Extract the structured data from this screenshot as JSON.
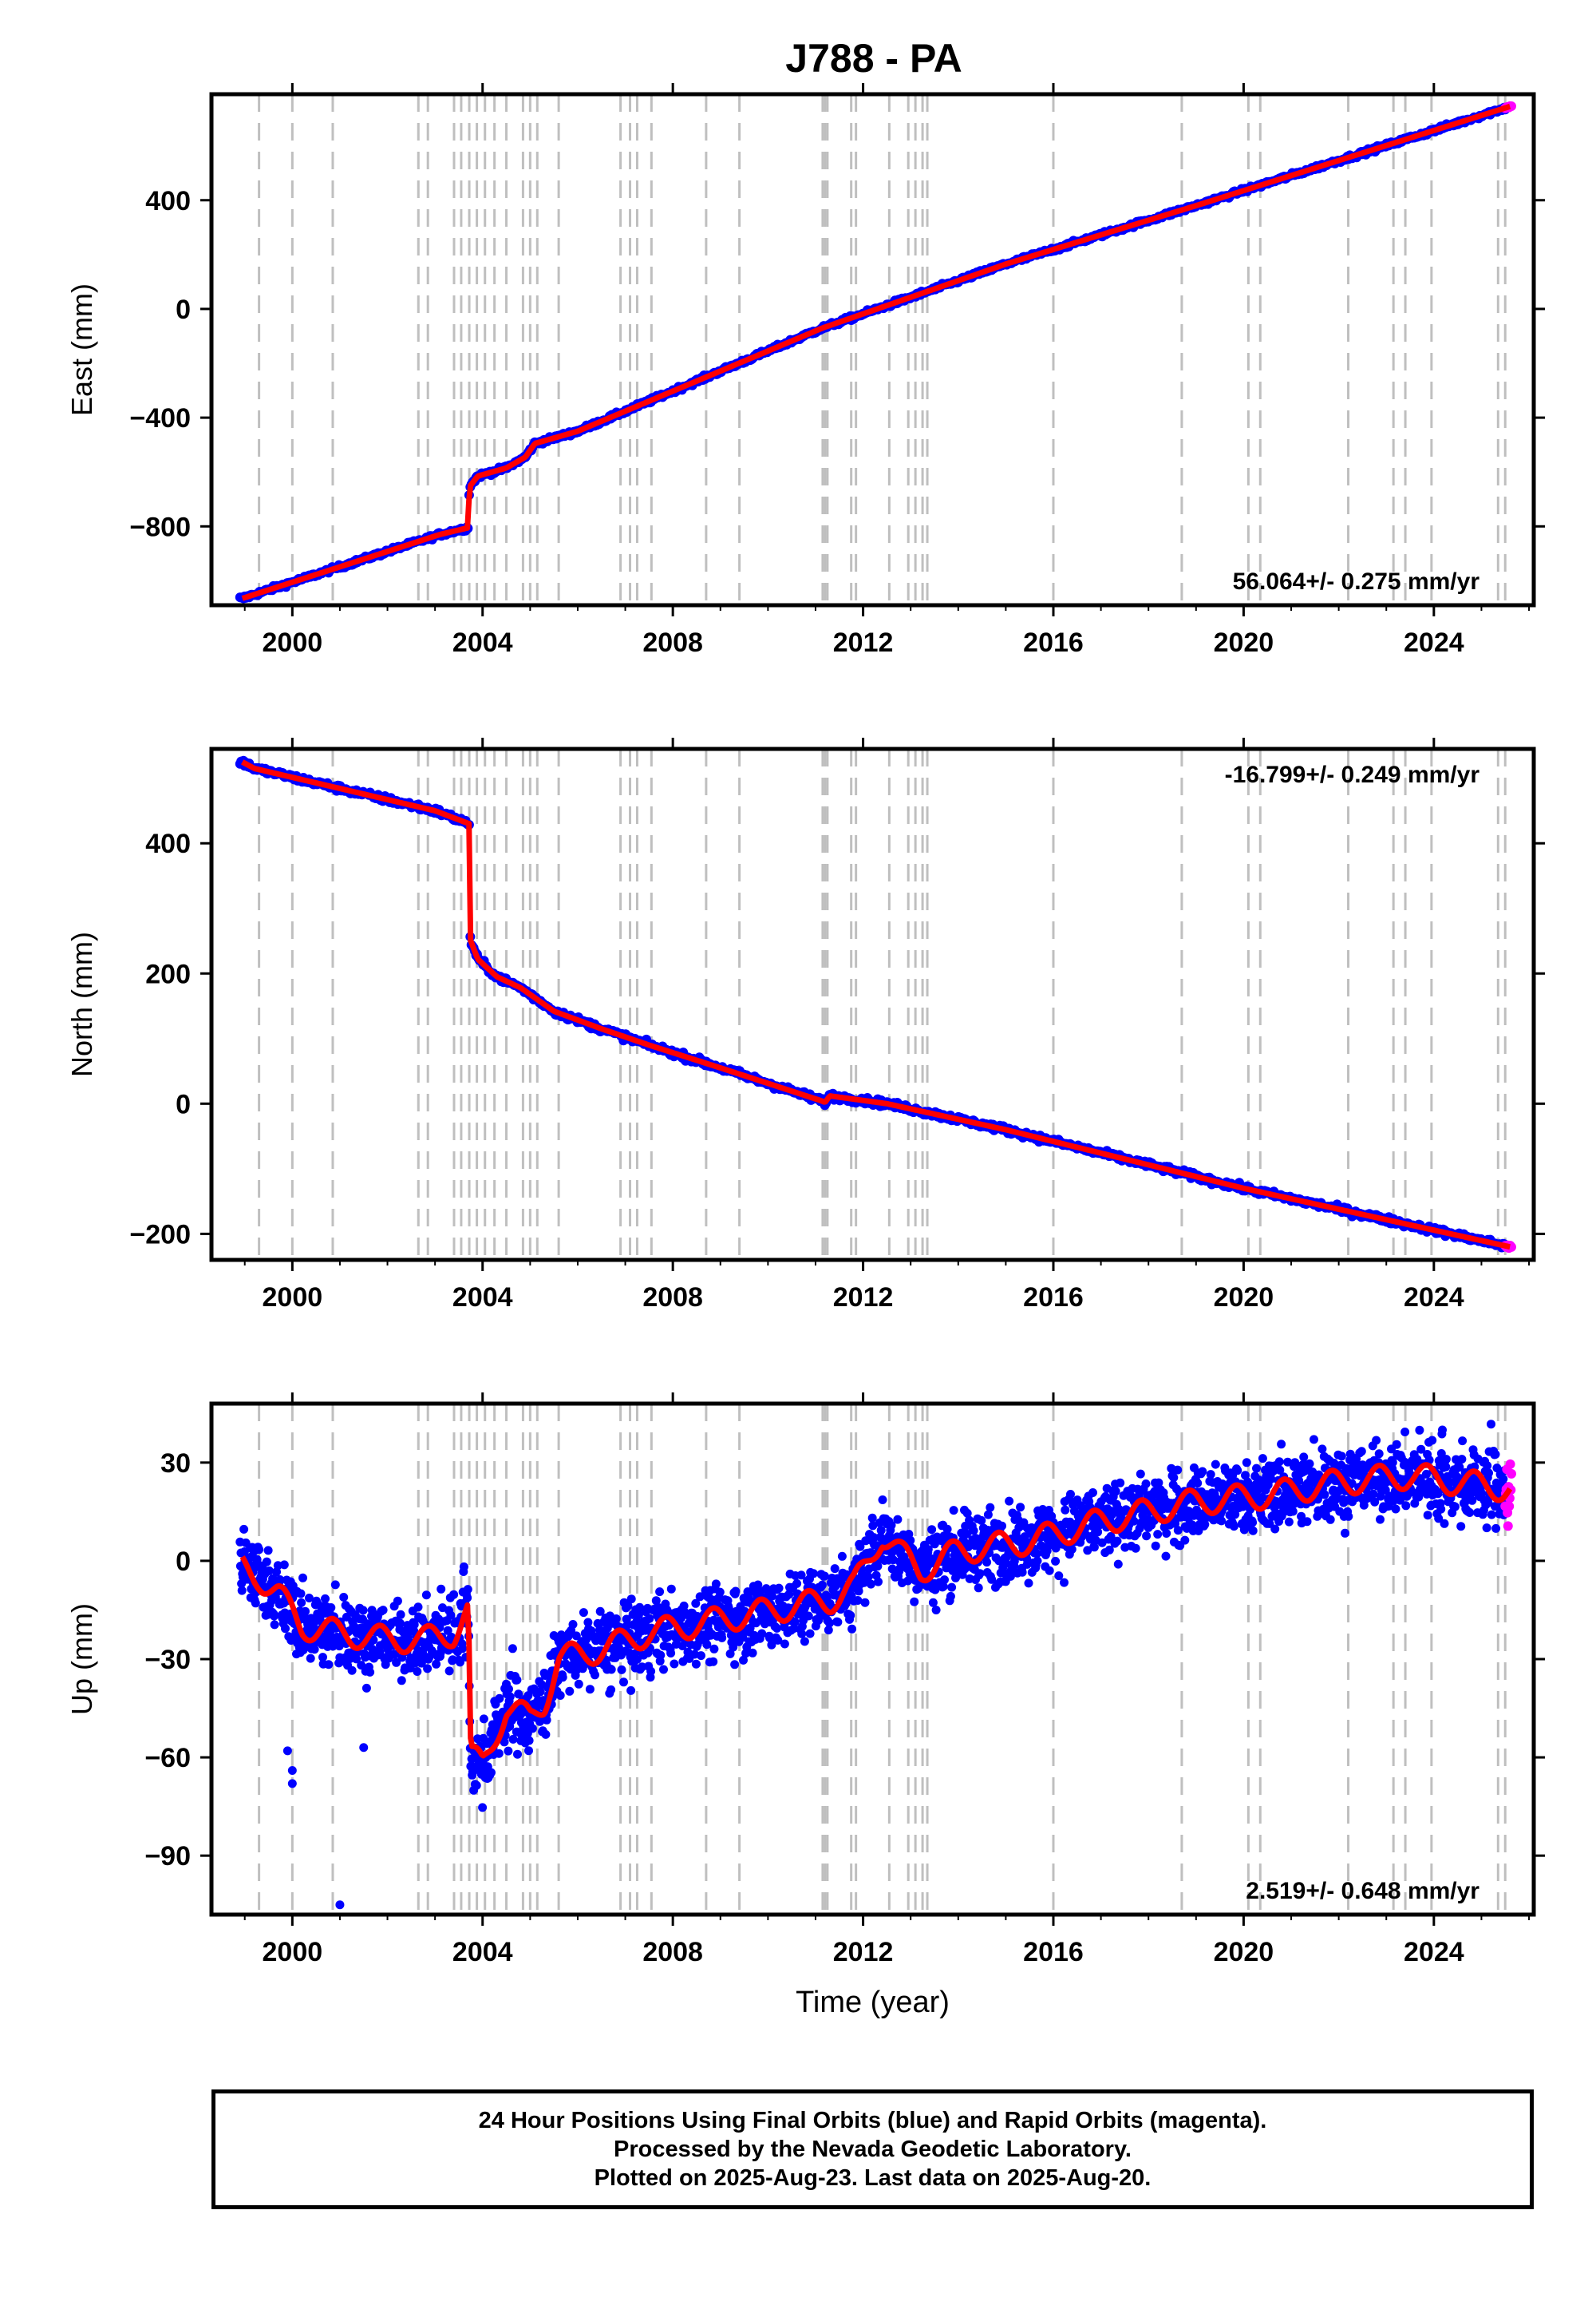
{
  "title": "J788 - PA",
  "xlabel": "Time (year)",
  "x_ticks": [
    "2000",
    "2004",
    "2008",
    "2012",
    "2016",
    "2020",
    "2024"
  ],
  "caption": [
    "24 Hour Positions Using Final Orbits (blue) and Rapid Orbits (magenta).",
    "Processed by the Nevada Geodetic Laboratory.",
    "Plotted on 2025-Aug-23. Last data on 2025-Aug-20."
  ],
  "colors": {
    "final_orbits": "#0000ff",
    "rapid_orbits": "#ff00ff",
    "fit": "#ff0000",
    "steps": "#bfbfbf"
  },
  "step_dates": [
    1999.3,
    2000.0,
    2000.85,
    2002.65,
    2002.85,
    2003.4,
    2003.55,
    2003.72,
    2003.88,
    2004.05,
    2004.25,
    2004.5,
    2004.85,
    2005.0,
    2005.15,
    2005.6,
    2006.9,
    2007.1,
    2007.25,
    2007.55,
    2008.7,
    2009.4,
    2011.15,
    2011.2,
    2011.25,
    2011.75,
    2011.85,
    2012.55,
    2012.95,
    2013.1,
    2013.25,
    2013.35,
    2016.0,
    2018.7,
    2020.1,
    2020.35,
    2022.2,
    2023.15,
    2023.4,
    2023.95,
    2025.35,
    2025.5
  ],
  "chart_data": [
    {
      "type": "scatter",
      "component": "east",
      "ylabel": "East (mm)",
      "y_ticks": [
        400,
        0,
        -400,
        -800
      ],
      "xlim": [
        1998.3,
        2026.1
      ],
      "ylim": [
        -1090,
        790
      ],
      "rate_label": "56.064+/- 0.275 mm/yr",
      "rate_position": "bottom-right",
      "fit_points": [
        [
          1998.95,
          -1065
        ],
        [
          2003.1,
          -830
        ],
        [
          2003.7,
          -805
        ],
        [
          2003.72,
          -655
        ],
        [
          2003.9,
          -615
        ],
        [
          2004.5,
          -585
        ],
        [
          2004.9,
          -545
        ],
        [
          2005.1,
          -495
        ],
        [
          2006.0,
          -450
        ],
        [
          2011.15,
          -70
        ],
        [
          2015.0,
          165
        ],
        [
          2019.0,
          380
        ],
        [
          2025.6,
          745
        ]
      ],
      "final_range": [
        1998.9,
        2025.5
      ],
      "rapid_range": [
        2025.5,
        2025.63
      ]
    },
    {
      "type": "scatter",
      "component": "north",
      "ylabel": "North (mm)",
      "y_ticks": [
        400,
        200,
        0,
        -200
      ],
      "xlim": [
        1998.3,
        2026.1
      ],
      "ylim": [
        -240,
        545
      ],
      "rate_label": "-16.799+/- 0.249 mm/yr",
      "rate_position": "top-right",
      "fit_points": [
        [
          1998.95,
          525
        ],
        [
          1999.2,
          515
        ],
        [
          2003.0,
          450
        ],
        [
          2003.72,
          430
        ],
        [
          2003.74,
          252
        ],
        [
          2003.9,
          222
        ],
        [
          2004.3,
          195
        ],
        [
          2004.8,
          178
        ],
        [
          2005.5,
          142
        ],
        [
          2006.5,
          115
        ],
        [
          2007.5,
          90
        ],
        [
          2009.0,
          55
        ],
        [
          2011.1,
          5
        ],
        [
          2011.2,
          2
        ],
        [
          2011.3,
          12
        ],
        [
          2012.5,
          0
        ],
        [
          2015.0,
          -40
        ],
        [
          2020.0,
          -130
        ],
        [
          2025.6,
          -220
        ]
      ],
      "final_range": [
        1998.9,
        2025.5
      ],
      "rapid_range": [
        2025.5,
        2025.63
      ]
    },
    {
      "type": "scatter",
      "component": "up",
      "ylabel": "Up (mm)",
      "y_ticks": [
        30,
        0,
        -30,
        -60,
        -90
      ],
      "xlim": [
        1998.3,
        2026.1
      ],
      "ylim": [
        -108,
        48
      ],
      "rate_label": "2.519+/- 0.648 mm/yr",
      "rate_position": "bottom-right",
      "fit_points": [
        [
          1998.95,
          -2
        ],
        [
          1999.3,
          -5
        ],
        [
          1999.7,
          -10
        ],
        [
          2000.2,
          -20
        ],
        [
          2001.0,
          -22
        ],
        [
          2002.0,
          -24
        ],
        [
          2002.8,
          -24
        ],
        [
          2003.4,
          -22
        ],
        [
          2003.7,
          -15
        ],
        [
          2003.75,
          -60
        ],
        [
          2004.0,
          -62
        ],
        [
          2004.5,
          -45
        ],
        [
          2005.0,
          -48
        ],
        [
          2005.3,
          -43
        ],
        [
          2005.6,
          -30
        ],
        [
          2006.5,
          -27
        ],
        [
          2007.5,
          -22
        ],
        [
          2009.0,
          -18
        ],
        [
          2010.5,
          -14
        ],
        [
          2011.3,
          -12
        ],
        [
          2011.8,
          -8
        ],
        [
          2012.4,
          8
        ],
        [
          2012.8,
          2
        ],
        [
          2013.2,
          -3
        ],
        [
          2014.0,
          3
        ],
        [
          2015.5,
          6
        ],
        [
          2017.0,
          12
        ],
        [
          2019.0,
          18
        ],
        [
          2020.5,
          20
        ],
        [
          2022.0,
          24
        ],
        [
          2023.5,
          26
        ],
        [
          2024.5,
          24
        ],
        [
          2025.6,
          22
        ]
      ],
      "final_range": [
        1998.9,
        2025.5
      ],
      "rapid_range": [
        2025.5,
        2025.63
      ],
      "outliers": [
        [
          2001.0,
          -105
        ],
        [
          2000.0,
          -68
        ],
        [
          2000.0,
          -64
        ],
        [
          2001.5,
          -57
        ],
        [
          1999.9,
          -58
        ]
      ]
    }
  ]
}
